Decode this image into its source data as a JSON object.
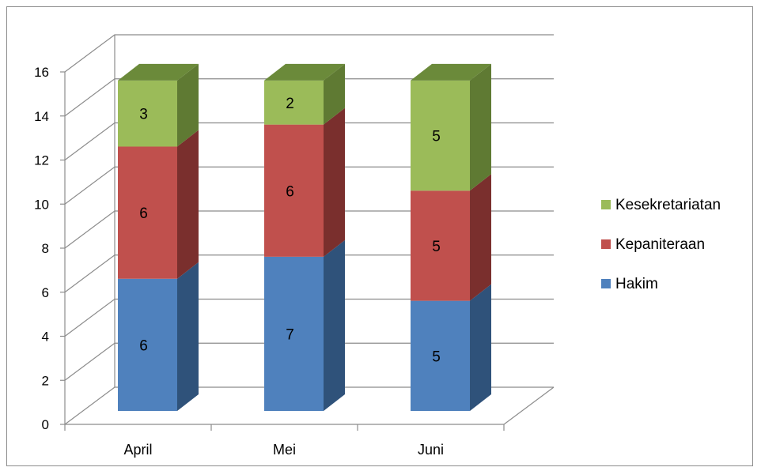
{
  "chart_data": {
    "type": "bar",
    "stacked": true,
    "three_d": true,
    "categories": [
      "April",
      "Mei",
      "Juni"
    ],
    "series": [
      {
        "name": "Hakim",
        "values": [
          6,
          7,
          5
        ],
        "color": "#4f81bd",
        "side_color": "#2f527a",
        "top_color": "#3f6a9e"
      },
      {
        "name": "Kepaniteraan",
        "values": [
          6,
          6,
          5
        ],
        "color": "#c0504d",
        "side_color": "#7a2f2d",
        "top_color": "#9e3e3b"
      },
      {
        "name": "Kesekretariatan",
        "values": [
          3,
          2,
          5
        ],
        "color": "#9bbb59",
        "side_color": "#5f7a33",
        "top_color": "#6b8a3a"
      }
    ],
    "y_ticks": [
      0,
      2,
      4,
      6,
      8,
      10,
      12,
      14,
      16
    ],
    "ylim": [
      0,
      16
    ],
    "grid": true,
    "legend_position": "right",
    "legend_order": [
      "Kesekretariatan",
      "Kepaniteraan",
      "Hakim"
    ],
    "title": "",
    "xlabel": "",
    "ylabel": ""
  }
}
